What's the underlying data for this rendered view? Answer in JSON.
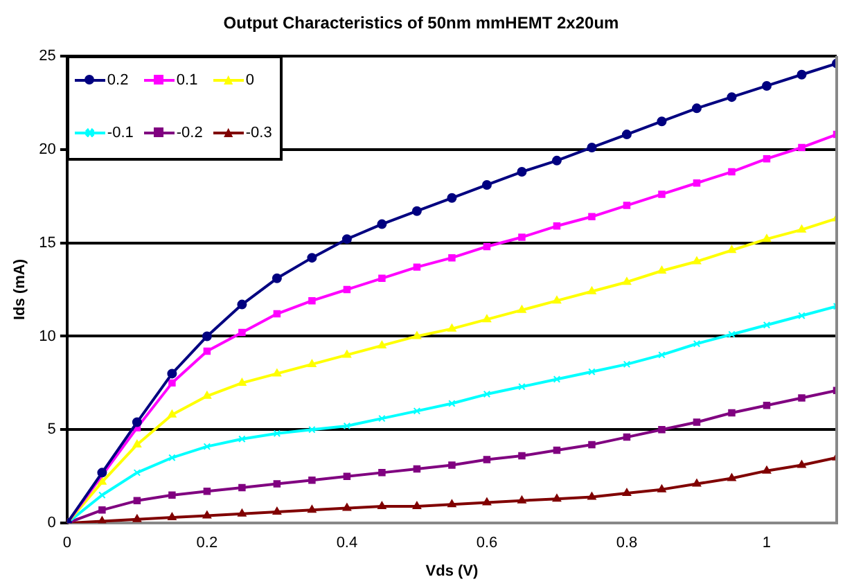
{
  "chart_data": {
    "type": "line",
    "title": "Output Characteristics of 50nm mmHEMT 2x20um",
    "xlabel": "Vds (V)",
    "ylabel": "Ids (mA)",
    "x": [
      0,
      0.05,
      0.1,
      0.15,
      0.2,
      0.25,
      0.3,
      0.35,
      0.4,
      0.45,
      0.5,
      0.55,
      0.6,
      0.65,
      0.7,
      0.75,
      0.8,
      0.85,
      0.9,
      0.95,
      1.0,
      1.05,
      1.1
    ],
    "series": [
      {
        "name": "0.2",
        "color": "#000080",
        "marker": "circle",
        "values": [
          0,
          2.7,
          5.4,
          8,
          10,
          11.7,
          13.1,
          14.2,
          15.2,
          16,
          16.7,
          17.4,
          18.1,
          18.8,
          19.4,
          20.1,
          20.8,
          21.5,
          22.2,
          22.8,
          23.4,
          24,
          24.6
        ]
      },
      {
        "name": "0.1",
        "color": "#ff00ff",
        "marker": "square",
        "values": [
          0,
          null,
          5.1,
          7.5,
          9.2,
          10.2,
          11.2,
          11.9,
          12.5,
          13.1,
          13.7,
          14.2,
          14.8,
          15.3,
          15.9,
          16.4,
          17,
          17.6,
          18.2,
          18.8,
          19.5,
          20.1,
          20.8
        ]
      },
      {
        "name": "0",
        "color": "#ffff00",
        "marker": "triangle",
        "values": [
          0,
          2.2,
          4.2,
          5.8,
          6.8,
          7.5,
          8,
          8.5,
          9,
          9.5,
          10,
          10.4,
          10.9,
          11.4,
          11.9,
          12.4,
          12.9,
          13.5,
          14,
          14.6,
          15.2,
          15.7,
          16.3
        ]
      },
      {
        "name": "-0.1",
        "color": "#00ffff",
        "marker": "cross",
        "values": [
          0,
          1.5,
          2.7,
          3.5,
          4.1,
          4.5,
          4.8,
          5,
          5.2,
          5.6,
          6,
          6.4,
          6.9,
          7.3,
          7.7,
          8.1,
          8.5,
          9,
          9.6,
          10.1,
          10.6,
          11.1,
          11.6
        ]
      },
      {
        "name": "-0.2",
        "color": "#800080",
        "marker": "square",
        "values": [
          0,
          0.7,
          1.2,
          1.5,
          1.7,
          1.9,
          2.1,
          2.3,
          2.5,
          2.7,
          2.9,
          3.1,
          3.4,
          3.6,
          3.9,
          4.2,
          4.6,
          5,
          5.4,
          5.9,
          6.3,
          6.7,
          7.1
        ]
      },
      {
        "name": "-0.3",
        "color": "#800000",
        "marker": "triangle",
        "values": [
          0,
          0.1,
          0.2,
          0.3,
          0.4,
          0.5,
          0.6,
          0.7,
          0.8,
          0.9,
          0.9,
          1,
          1.1,
          1.2,
          1.3,
          1.4,
          1.6,
          1.8,
          2.1,
          2.4,
          2.8,
          3.1,
          3.5
        ]
      }
    ],
    "xlim": [
      0,
      1.1
    ],
    "xticks": [
      0,
      0.2,
      0.4,
      0.6,
      0.8,
      1
    ],
    "ylim": [
      0,
      25
    ],
    "yticks": [
      0,
      5,
      10,
      15,
      20,
      25
    ],
    "grid": "y",
    "legend": "top left",
    "line_style": "solid"
  }
}
